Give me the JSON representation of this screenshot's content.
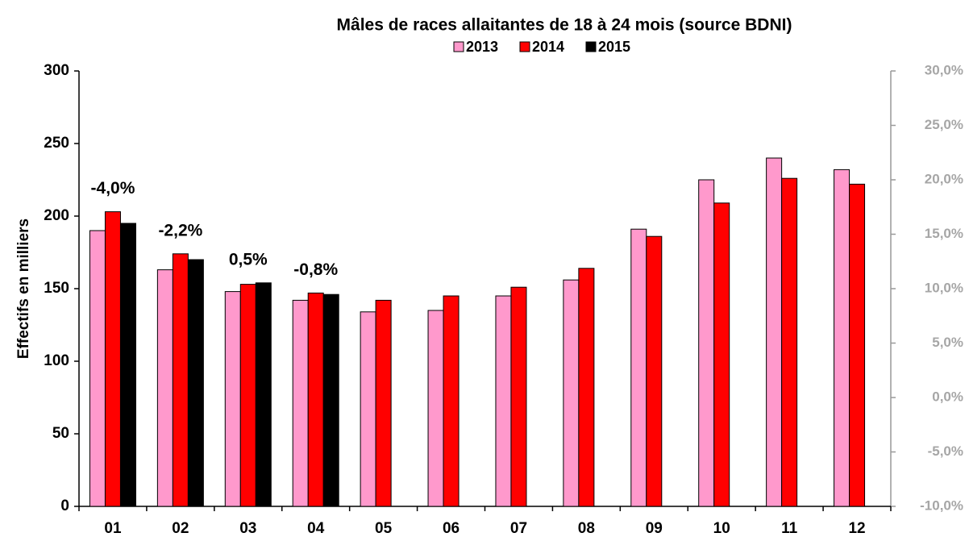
{
  "chart_data": {
    "type": "bar",
    "title": "Mâles de races allaitantes de 18 à 24 mois (source BDNI)",
    "y_label": "Effectifs  en milliers",
    "categories": [
      "01",
      "02",
      "03",
      "04",
      "05",
      "06",
      "07",
      "08",
      "09",
      "10",
      "11",
      "12"
    ],
    "series": [
      {
        "name": "2013",
        "color": "#ff99cc",
        "values": [
          190,
          163,
          148,
          142,
          134,
          135,
          145,
          156,
          191,
          225,
          240,
          232
        ]
      },
      {
        "name": "2014",
        "color": "#ff0000",
        "values": [
          203,
          174,
          153,
          147,
          142,
          145,
          151,
          164,
          186,
          209,
          226,
          222
        ]
      },
      {
        "name": "2015",
        "color": "#000000",
        "values": [
          195,
          170,
          154,
          146,
          null,
          null,
          null,
          null,
          null,
          null,
          null,
          null
        ]
      }
    ],
    "annotations": [
      "-4,0%",
      "-2,2%",
      "0,5%",
      "-0,8%"
    ],
    "ylim": [
      0,
      300
    ],
    "yticks": [
      0,
      50,
      100,
      150,
      200,
      250,
      300
    ],
    "y2lim": [
      -10,
      30
    ],
    "y2ticks": [
      {
        "value": -10,
        "label": "-10,0%"
      },
      {
        "value": -5,
        "label": "-5,0%"
      },
      {
        "value": 0,
        "label": "0,0%"
      },
      {
        "value": 5,
        "label": "5,0%"
      },
      {
        "value": 10,
        "label": "10,0%"
      },
      {
        "value": 15,
        "label": "15,0%"
      },
      {
        "value": 20,
        "label": "20,0%"
      },
      {
        "value": 25,
        "label": "25,0%"
      },
      {
        "value": 30,
        "label": "30,0%"
      }
    ],
    "legend": "top",
    "grid": false
  }
}
